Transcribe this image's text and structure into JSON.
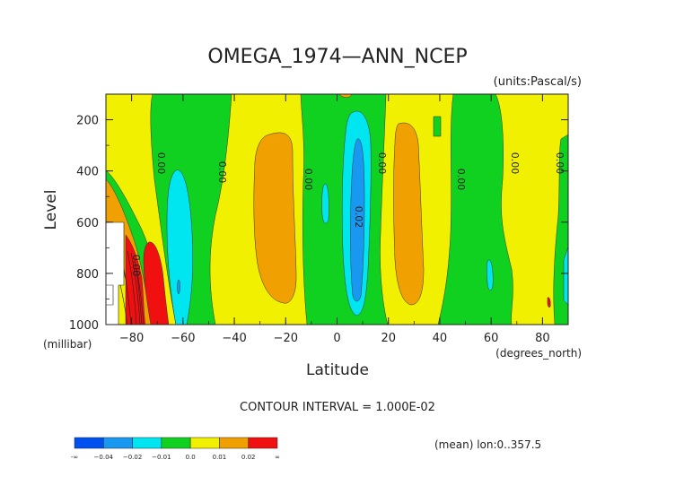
{
  "chart_data": {
    "type": "heatmap",
    "title": "OMEGA_1974—ANN_NCEP",
    "units": "(units:Pascal/s)",
    "ylabel": "Level",
    "ylabel_units": "(millibar)",
    "xlabel": "Latitude",
    "xlabel_units": "(degrees_north)",
    "x_ticks": [
      -80,
      -60,
      -40,
      -20,
      0,
      20,
      40,
      60,
      80
    ],
    "x_tick_labels": [
      "−80",
      "−60",
      "−40",
      "−20",
      "0",
      "20",
      "40",
      "60",
      "80"
    ],
    "y_ticks": [
      200,
      400,
      600,
      800,
      1000
    ],
    "xlim": [
      -90,
      90
    ],
    "ylim": [
      1000,
      100
    ],
    "contour_interval": "CONTOUR INTERVAL = 1.000E-02",
    "contour_labels": [
      "0.00",
      "0.00",
      "0.00",
      "0.00",
      "0.00",
      "0.00",
      "0.00",
      "0.02",
      "0.00"
    ],
    "colorbar": {
      "colors": [
        "#0050f0",
        "#1898f0",
        "#00e6f0",
        "#10d020",
        "#f0f000",
        "#f0a000",
        "#f01010"
      ],
      "labels": [
        "-∞",
        "−0.04",
        "−0.02",
        "−0.01",
        "0.0",
        "0.01",
        "0.02",
        "∞"
      ]
    },
    "footer_note": "(mean) lon:0..357.5"
  }
}
